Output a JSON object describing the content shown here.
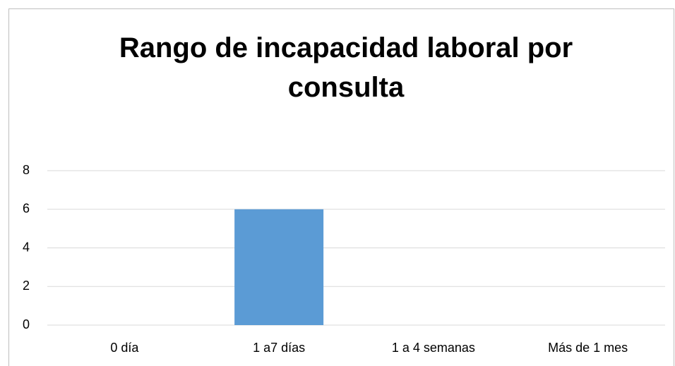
{
  "chart_data": {
    "type": "bar",
    "title": "Rango de incapacidad laboral por consulta",
    "categories": [
      "0 día",
      "1 a7 días",
      "1 a 4 semanas",
      "Más de 1 mes"
    ],
    "values": [
      0,
      6,
      0,
      0
    ],
    "color": "#5b9bd5",
    "ylim": [
      0,
      8
    ],
    "yticks": [
      0,
      2,
      4,
      6,
      8
    ],
    "grid": true
  }
}
